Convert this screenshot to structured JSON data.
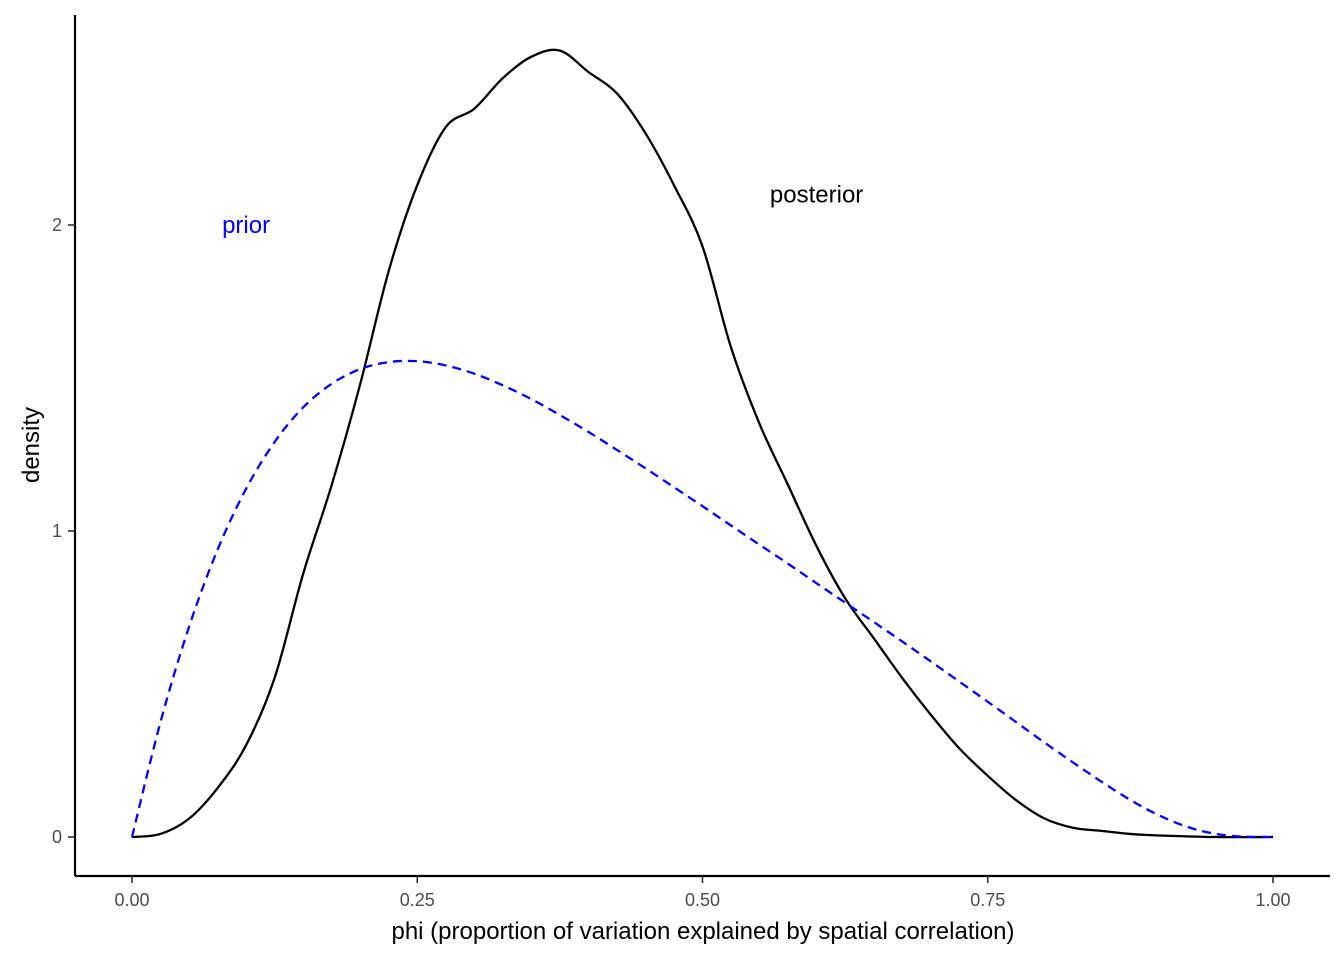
{
  "chart_data": {
    "type": "line",
    "xlabel": "phi (proportion of variation explained by spatial correlation)",
    "ylabel": "density",
    "xlim": [
      -0.05,
      1.05
    ],
    "ylim": [
      -0.12,
      2.68
    ],
    "x_ticks": [
      {
        "value": 0.0,
        "label": "0.00"
      },
      {
        "value": 0.25,
        "label": "0.25"
      },
      {
        "value": 0.5,
        "label": "0.50"
      },
      {
        "value": 0.75,
        "label": "0.75"
      },
      {
        "value": 1.0,
        "label": "1.00"
      }
    ],
    "y_ticks": [
      {
        "value": 0,
        "label": "0"
      },
      {
        "value": 1,
        "label": "1"
      },
      {
        "value": 2,
        "label": "2"
      }
    ],
    "grid": false,
    "series": [
      {
        "name": "posterior",
        "color": "#000000",
        "linestyle": "solid",
        "x": [
          0.0,
          0.025,
          0.05,
          0.075,
          0.1,
          0.125,
          0.15,
          0.175,
          0.2,
          0.225,
          0.25,
          0.275,
          0.3,
          0.325,
          0.35,
          0.375,
          0.4,
          0.425,
          0.45,
          0.475,
          0.5,
          0.525,
          0.55,
          0.575,
          0.6,
          0.625,
          0.65,
          0.675,
          0.7,
          0.725,
          0.75,
          0.775,
          0.8,
          0.825,
          0.85,
          0.875,
          0.9,
          0.95,
          1.0
        ],
        "y": [
          0.0,
          0.01,
          0.06,
          0.16,
          0.3,
          0.52,
          0.86,
          1.15,
          1.48,
          1.85,
          2.13,
          2.32,
          2.38,
          2.48,
          2.55,
          2.57,
          2.5,
          2.43,
          2.3,
          2.13,
          1.93,
          1.6,
          1.35,
          1.15,
          0.95,
          0.78,
          0.65,
          0.52,
          0.4,
          0.29,
          0.2,
          0.12,
          0.06,
          0.03,
          0.02,
          0.01,
          0.005,
          0.0,
          0.0
        ]
      },
      {
        "name": "prior",
        "color": "#0000ff",
        "linestyle": "dashed",
        "x": [
          0.0,
          0.025,
          0.05,
          0.075,
          0.1,
          0.125,
          0.15,
          0.175,
          0.2,
          0.225,
          0.25,
          0.275,
          0.3,
          0.325,
          0.35,
          0.375,
          0.4,
          0.425,
          0.45,
          0.475,
          0.5,
          0.525,
          0.55,
          0.575,
          0.6,
          0.625,
          0.65,
          0.675,
          0.7,
          0.725,
          0.75,
          0.775,
          0.8,
          0.825,
          0.85,
          0.875,
          0.9,
          0.925,
          0.95,
          0.975,
          1.0
        ],
        "y": [
          0.0,
          0.376,
          0.687,
          0.939,
          1.138,
          1.291,
          1.404,
          1.481,
          1.529,
          1.552,
          1.555,
          1.541,
          1.514,
          1.476,
          1.431,
          1.379,
          1.324,
          1.265,
          1.205,
          1.143,
          1.081,
          1.018,
          0.955,
          0.893,
          0.829,
          0.766,
          0.703,
          0.639,
          0.574,
          0.508,
          0.442,
          0.375,
          0.308,
          0.243,
          0.18,
          0.121,
          0.071,
          0.033,
          0.01,
          0.001,
          0.0
        ]
      }
    ],
    "annotations": [
      {
        "text": "prior",
        "x": 0.1,
        "y": 2.0,
        "color": "#0000ff"
      },
      {
        "text": "posterior",
        "x": 0.6,
        "y": 2.1,
        "color": "#000000"
      }
    ]
  }
}
